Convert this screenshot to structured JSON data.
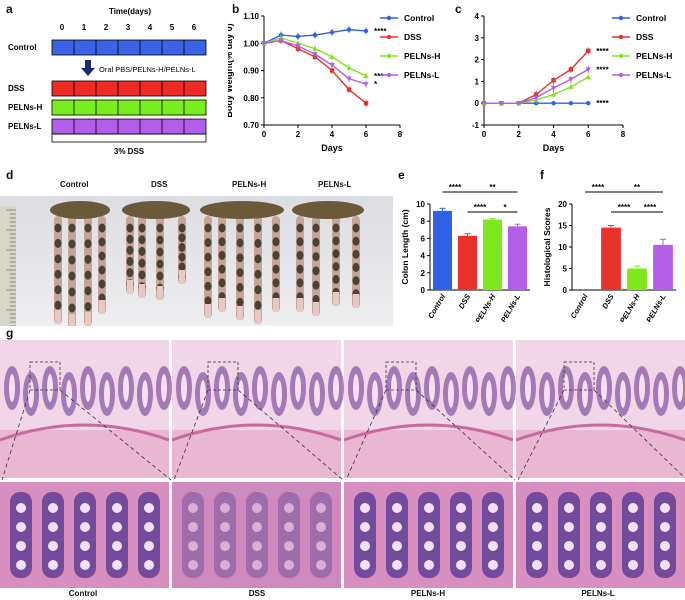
{
  "panels": {
    "a": "a",
    "b": "b",
    "c": "c",
    "d": "d",
    "e": "e",
    "f": "f",
    "g": "g"
  },
  "colors": {
    "control": "#2f62e8",
    "dss": "#e8312a",
    "pelns_h": "#7ee81c",
    "pelns_l": "#b25ee8",
    "timeline_blue": "#3b63e6",
    "timeline_red": "#ee2c23",
    "timeline_green": "#78ee1c",
    "timeline_purple": "#b15ee8",
    "he_pink": "#d888b8",
    "he_purple": "#6a4aa0"
  },
  "schematic": {
    "time_label": "Time(days)",
    "days": [
      "0",
      "1",
      "2",
      "3",
      "4",
      "5",
      "6"
    ],
    "groups": [
      "Control",
      "DSS",
      "PELNs-H",
      "PELNs-L"
    ],
    "treatment_label": "Oral PBS/PELNs-H/PELNs-L",
    "dss_label": "3% DSS",
    "arrow_icon": "down-arrow-icon"
  },
  "photo": {
    "labels": [
      "Control",
      "DSS",
      "PELNs-H",
      "PELNs-L"
    ]
  },
  "histology": {
    "labels": [
      "Control",
      "DSS",
      "PELNs-H",
      "PELNs-L"
    ]
  },
  "chart_data": [
    {
      "id": "b",
      "type": "line",
      "ylabel": "Body Weight(% day 0)",
      "xlabel": "Days",
      "xlim": [
        0,
        8
      ],
      "ylim": [
        0.7,
        1.1
      ],
      "xticks": [
        "0",
        "2",
        "4",
        "6",
        "8"
      ],
      "yticks": [
        "0.70",
        "0.80",
        "0.90",
        "1.00",
        "1.10"
      ],
      "x": [
        0,
        1,
        2,
        3,
        4,
        5,
        6
      ],
      "series": [
        {
          "name": "Control",
          "values": [
            1.0,
            1.03,
            1.025,
            1.03,
            1.04,
            1.05,
            1.045
          ],
          "sig": "****"
        },
        {
          "name": "DSS",
          "values": [
            1.0,
            1.01,
            0.98,
            0.95,
            0.9,
            0.83,
            0.78
          ],
          "sig": ""
        },
        {
          "name": "PELNs-H",
          "values": [
            1.0,
            1.02,
            1.0,
            0.98,
            0.95,
            0.91,
            0.88
          ],
          "sig": "***"
        },
        {
          "name": "PELNs-L",
          "values": [
            1.0,
            1.01,
            0.99,
            0.96,
            0.92,
            0.87,
            0.85
          ],
          "sig": "*"
        }
      ]
    },
    {
      "id": "c",
      "type": "line",
      "ylabel": "DAI",
      "xlabel": "Days",
      "xlim": [
        0,
        8
      ],
      "ylim": [
        -1,
        4
      ],
      "xticks": [
        "0",
        "2",
        "4",
        "6",
        "8"
      ],
      "yticks": [
        "-1",
        "0",
        "1",
        "2",
        "3",
        "4"
      ],
      "x": [
        0,
        1,
        2,
        3,
        4,
        5,
        6
      ],
      "series": [
        {
          "name": "Control",
          "values": [
            0,
            0,
            0,
            0,
            0,
            0,
            0
          ],
          "sig": "****"
        },
        {
          "name": "DSS",
          "values": [
            0,
            0,
            0,
            0.4,
            1.05,
            1.55,
            2.4
          ],
          "sig": "****"
        },
        {
          "name": "PELNs-H",
          "values": [
            0,
            0,
            0,
            0.15,
            0.4,
            0.75,
            1.2
          ],
          "sig": ""
        },
        {
          "name": "PELNs-L",
          "values": [
            0,
            0,
            0,
            0.25,
            0.7,
            1.1,
            1.55
          ],
          "sig": "****"
        }
      ]
    },
    {
      "id": "e",
      "type": "bar",
      "ylabel": "Colon Length (cm)",
      "ylim": [
        0,
        10
      ],
      "yticks": [
        "0",
        "2",
        "4",
        "6",
        "8",
        "10"
      ],
      "categories": [
        "Control",
        "DSS",
        "PELNs-H",
        "PELNs-L"
      ],
      "values": [
        9.2,
        6.3,
        8.2,
        7.4
      ],
      "errors": [
        0.3,
        0.25,
        0.1,
        0.25
      ],
      "sig": [
        {
          "from": 0,
          "to": 1,
          "label": "****",
          "level": 0
        },
        {
          "from": 1,
          "to": 3,
          "label": "**",
          "level": 0
        },
        {
          "from": 1,
          "to": 2,
          "label": "****",
          "level": 1
        },
        {
          "from": 2,
          "to": 3,
          "label": "*",
          "level": 1
        }
      ]
    },
    {
      "id": "f",
      "type": "bar",
      "ylabel": "Histological Scores",
      "ylim": [
        0,
        20
      ],
      "yticks": [
        "0",
        "5",
        "10",
        "15",
        "20"
      ],
      "categories": [
        "Control",
        "DSS",
        "PELNs-H",
        "PELNs-L"
      ],
      "values": [
        0,
        14.5,
        5.0,
        10.5
      ],
      "errors": [
        0,
        0.5,
        0.6,
        1.3
      ],
      "sig": [
        {
          "from": 0,
          "to": 1,
          "label": "****",
          "level": 0
        },
        {
          "from": 1,
          "to": 3,
          "label": "**",
          "level": 0
        },
        {
          "from": 1,
          "to": 2,
          "label": "****",
          "level": 1
        },
        {
          "from": 2,
          "to": 3,
          "label": "****",
          "level": 1
        }
      ]
    }
  ]
}
